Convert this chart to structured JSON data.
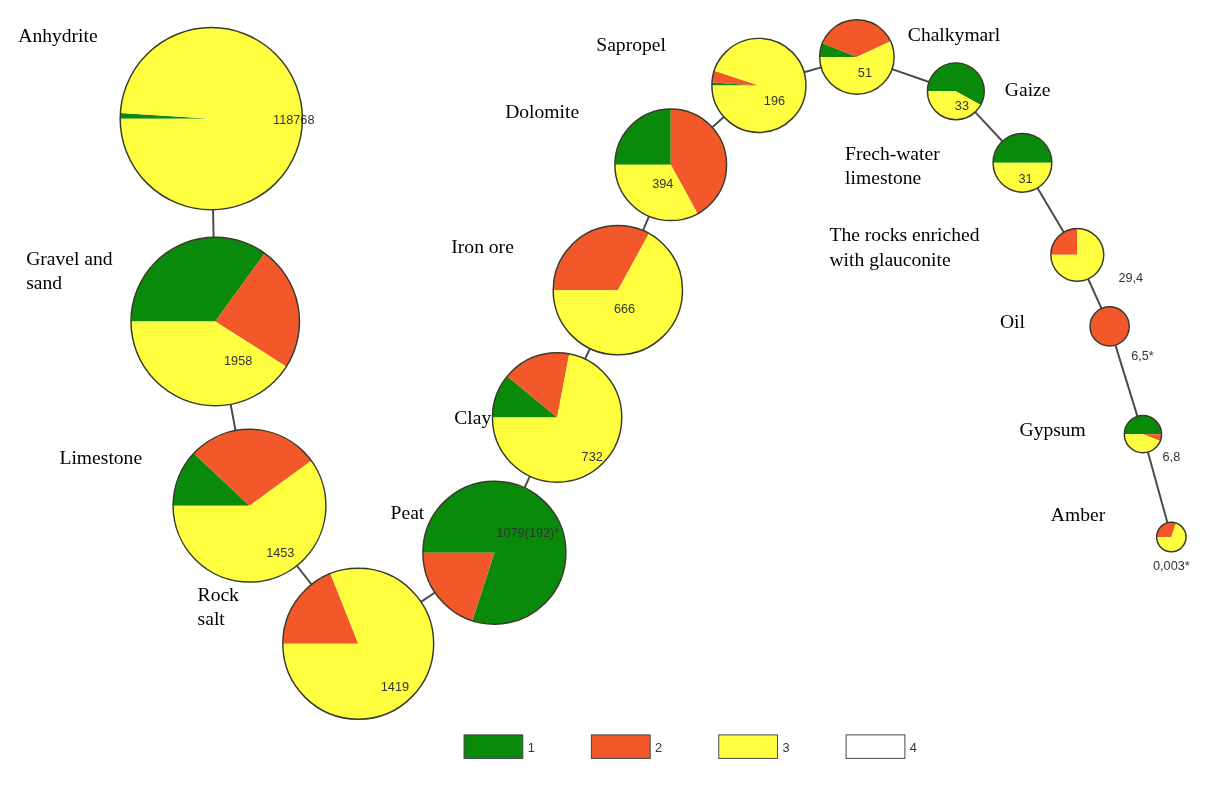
{
  "chart_data": [
    {
      "type": "pie",
      "title": "Anhydrite",
      "categories": [
        "1",
        "2",
        "3",
        "4"
      ],
      "values": [
        1,
        0,
        99,
        0
      ],
      "colors": [
        "#0a8a0a",
        "#f2582a",
        "#ffff40",
        "#ffffff"
      ],
      "annotations": [
        "118768"
      ],
      "legend": "bottom"
    },
    {
      "type": "pie",
      "title": "Gravel and sand",
      "categories": [
        null,
        null,
        null,
        null
      ],
      "values": [
        35,
        24,
        41,
        0
      ],
      "colors": [
        "#0a8a0a",
        "#f2582a",
        "#ffff40",
        "#ffffff"
      ],
      "annotations": [
        "1958"
      ]
    },
    {
      "type": "pie",
      "title": "Limestone",
      "categories": [
        null,
        null,
        null,
        null
      ],
      "values": [
        12,
        28,
        60,
        0
      ],
      "colors": [
        "#0a8a0a",
        "#f2582a",
        "#ffff40",
        "#ffffff"
      ],
      "annotations": [
        "1453"
      ]
    },
    {
      "type": "pie",
      "title": "Rock salt",
      "categories": [
        null,
        null,
        null,
        null
      ],
      "values": [
        0,
        19,
        81,
        0
      ],
      "colors": [
        "#0a8a0a",
        "#f2582a",
        "#ffff40",
        "#ffffff"
      ],
      "annotations": [
        "1419"
      ]
    },
    {
      "type": "pie",
      "title": "Peat",
      "categories": [
        null,
        null,
        null,
        null
      ],
      "values": [
        80,
        20,
        0,
        0
      ],
      "colors": [
        "#0a8a0a",
        "#f2582a",
        "#ffff40",
        "#ffffff"
      ],
      "annotations": [
        "1079(192)*"
      ]
    },
    {
      "type": "pie",
      "title": "Clay",
      "categories": [
        null,
        null,
        null,
        null
      ],
      "values": [
        11,
        17,
        72,
        0
      ],
      "colors": [
        "#0a8a0a",
        "#f2582a",
        "#ffff40",
        "#ffffff"
      ],
      "annotations": [
        "732"
      ]
    },
    {
      "type": "pie",
      "title": "Iron ore",
      "categories": [
        null,
        null,
        null,
        null
      ],
      "values": [
        0,
        33,
        67,
        0
      ],
      "colors": [
        "#0a8a0a",
        "#f2582a",
        "#ffff40",
        "#ffffff"
      ],
      "annotations": [
        "666"
      ]
    },
    {
      "type": "pie",
      "title": "Dolomite",
      "categories": [
        null,
        null,
        null,
        null
      ],
      "values": [
        25,
        42,
        33,
        0
      ],
      "colors": [
        "#0a8a0a",
        "#f2582a",
        "#ffff40",
        "#ffffff"
      ],
      "annotations": [
        "394"
      ]
    },
    {
      "type": "pie",
      "title": "Sapropel",
      "categories": [
        null,
        null,
        null,
        null
      ],
      "values": [
        1,
        4,
        95,
        0
      ],
      "colors": [
        "#0a8a0a",
        "#f2582a",
        "#ffff40",
        "#ffffff"
      ],
      "annotations": [
        "196"
      ]
    },
    {
      "type": "pie",
      "title": "Chalkymarl",
      "categories": [
        null,
        null,
        null,
        null
      ],
      "values": [
        6,
        37,
        57,
        0
      ],
      "colors": [
        "#0a8a0a",
        "#f2582a",
        "#ffff40",
        "#ffffff"
      ],
      "annotations": [
        "51"
      ]
    },
    {
      "type": "pie",
      "title": "Gaize",
      "categories": [
        null,
        null,
        null,
        null
      ],
      "values": [
        58,
        0,
        42,
        0
      ],
      "colors": [
        "#0a8a0a",
        "#f2582a",
        "#ffff40",
        "#ffffff"
      ],
      "annotations": [
        "33"
      ]
    },
    {
      "type": "pie",
      "title": "Frech-water limestone",
      "categories": [
        null,
        null,
        null,
        null
      ],
      "values": [
        50,
        0,
        50,
        0
      ],
      "colors": [
        "#0a8a0a",
        "#f2582a",
        "#ffff40",
        "#ffffff"
      ],
      "annotations": [
        "31"
      ]
    },
    {
      "type": "pie",
      "title": "The rocks enriched with glauconite",
      "categories": [
        null,
        null,
        null,
        null
      ],
      "values": [
        0,
        25,
        75,
        0
      ],
      "colors": [
        "#0a8a0a",
        "#f2582a",
        "#ffff40",
        "#ffffff"
      ],
      "annotations": [
        "29,4"
      ]
    },
    {
      "type": "pie",
      "title": "Oil",
      "categories": [
        null,
        null,
        null,
        null
      ],
      "values": [
        0,
        100,
        0,
        0
      ],
      "colors": [
        "#0a8a0a",
        "#f2582a",
        "#ffff40",
        "#ffffff"
      ],
      "annotations": [
        "6,5*"
      ]
    },
    {
      "type": "pie",
      "title": "Gypsum",
      "categories": [
        null,
        null,
        null,
        null
      ],
      "values": [
        50,
        6,
        44,
        0
      ],
      "colors": [
        "#0a8a0a",
        "#f2582a",
        "#ffff40",
        "#ffffff"
      ],
      "annotations": [
        "6,8"
      ]
    },
    {
      "type": "pie",
      "title": "Amber",
      "categories": [
        null,
        null,
        null,
        null
      ],
      "values": [
        0,
        30,
        70,
        0
      ],
      "colors": [
        "#0a8a0a",
        "#f2582a",
        "#ffff40",
        "#ffffff"
      ],
      "annotations": [
        "0,003*"
      ]
    }
  ]
}
